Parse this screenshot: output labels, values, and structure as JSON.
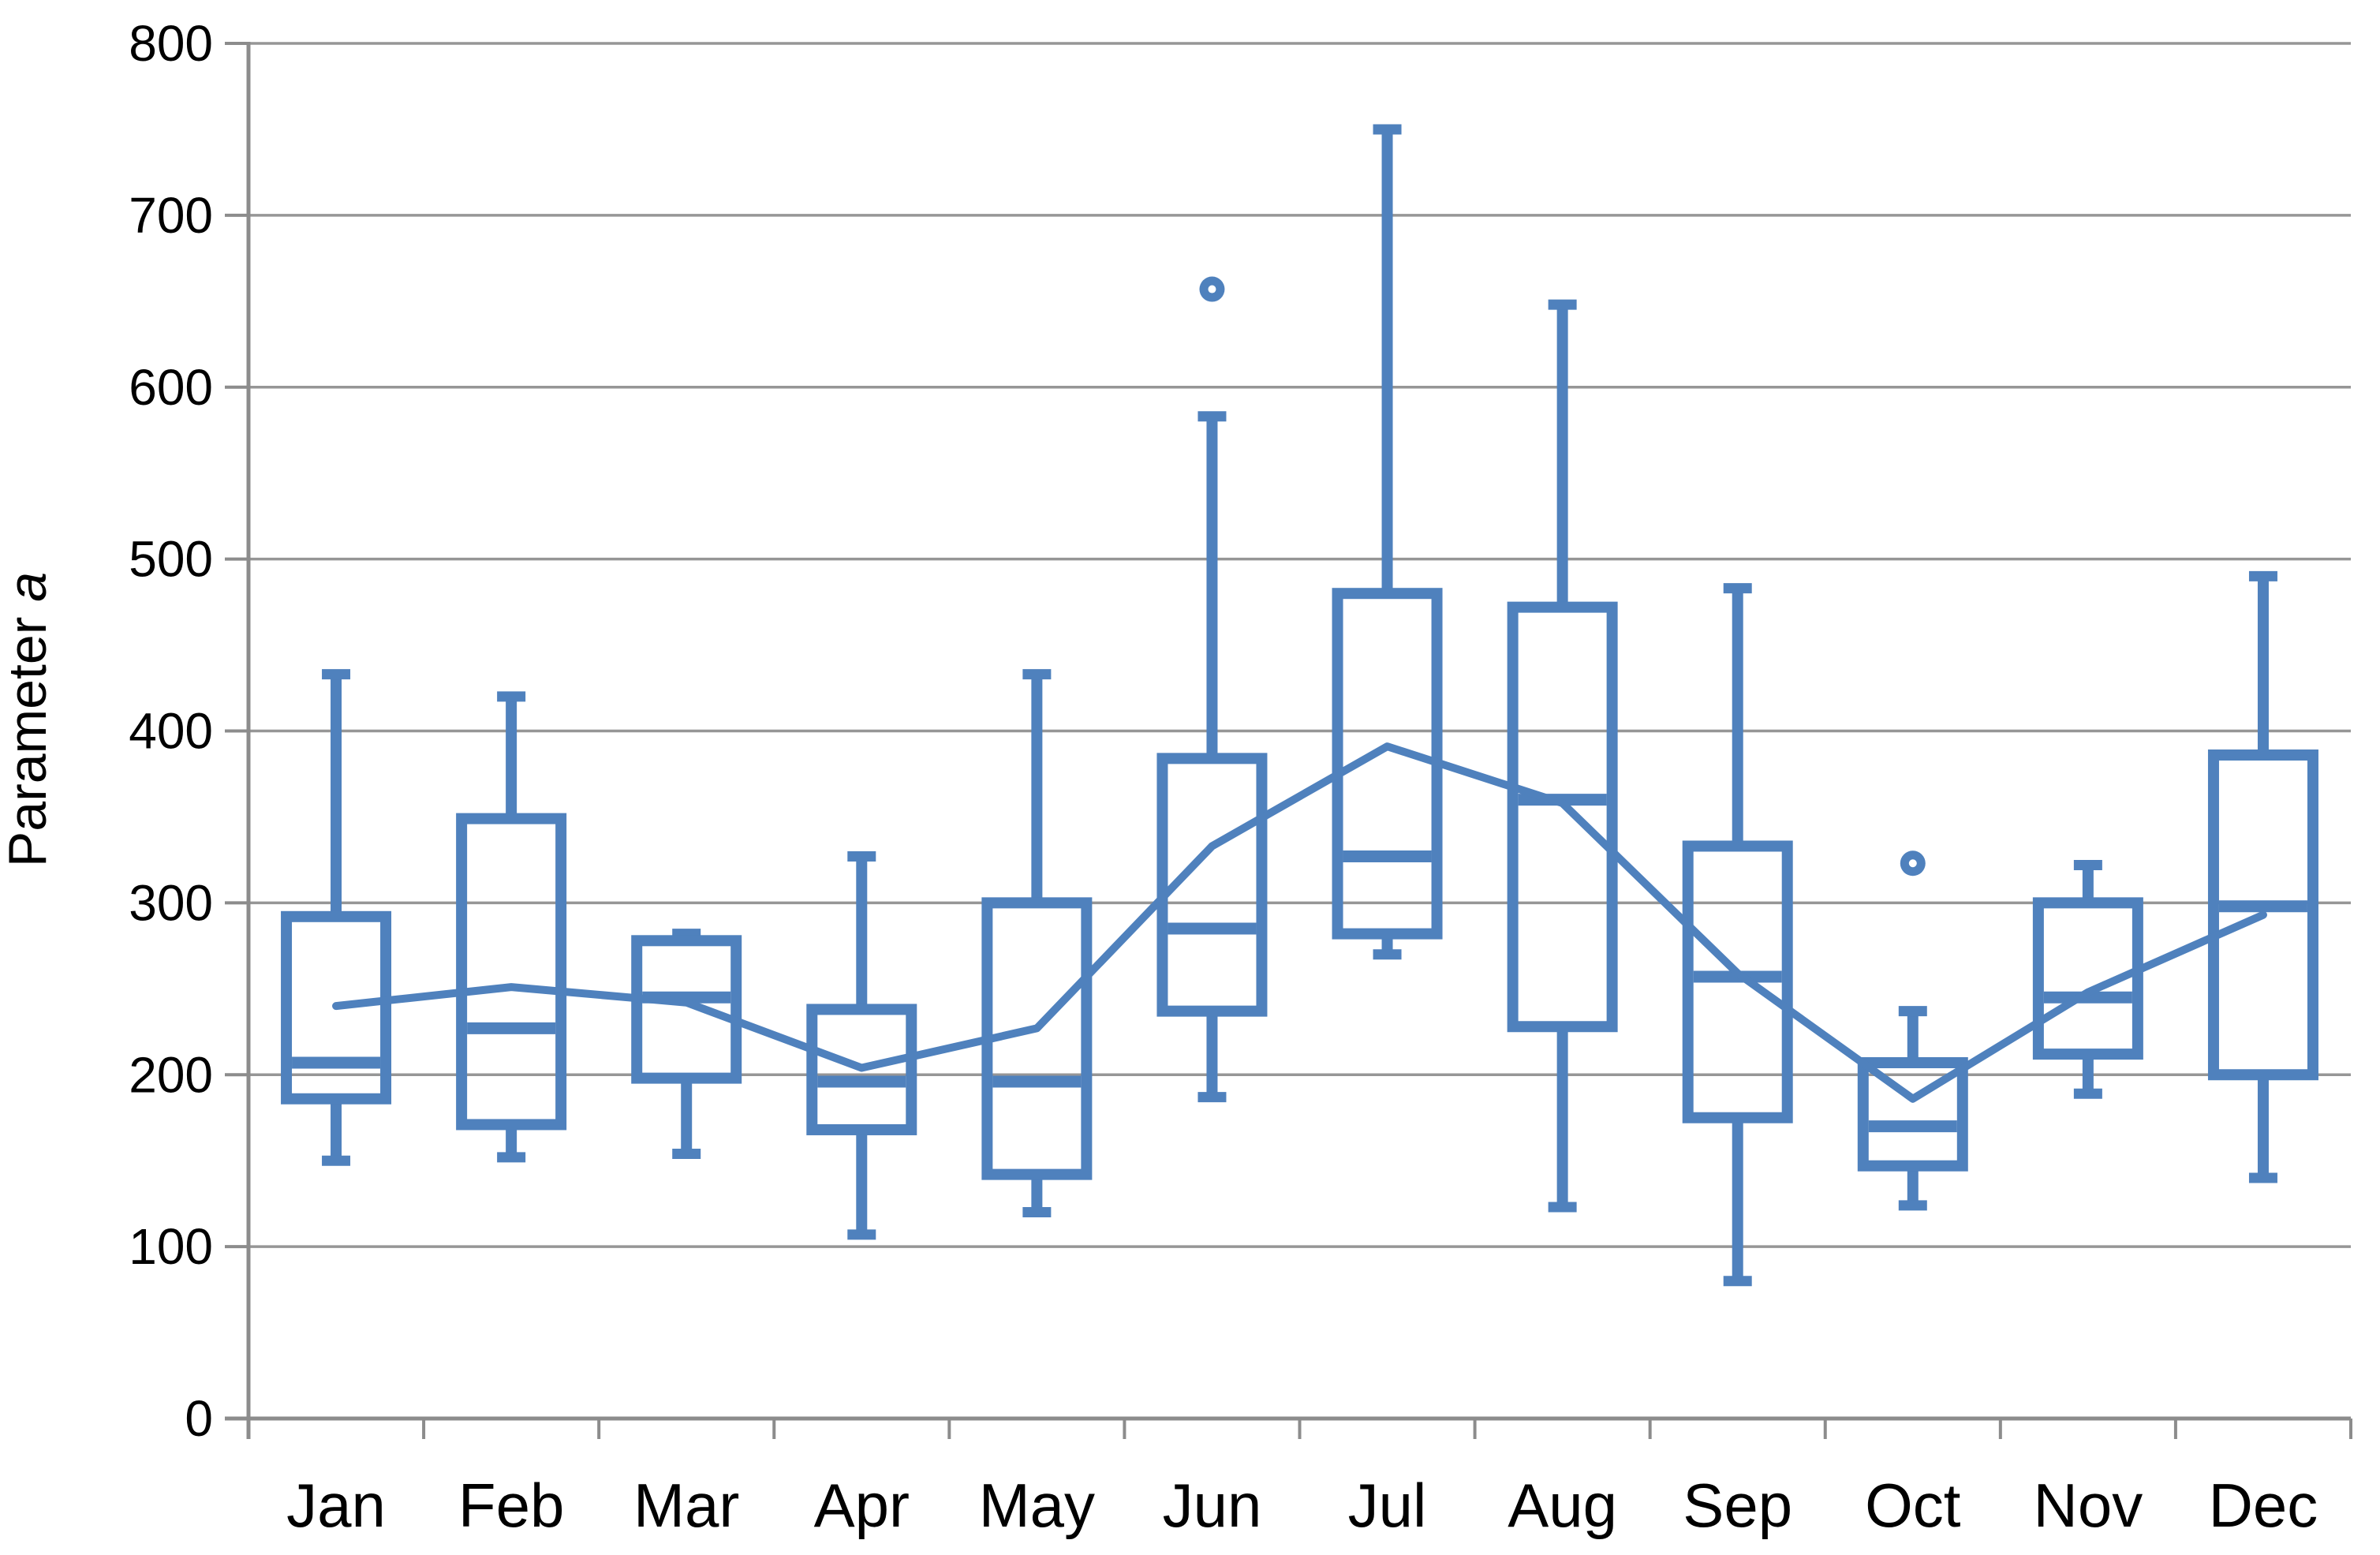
{
  "chart_data": {
    "type": "box",
    "title": "",
    "xlabel": "",
    "ylabel": "Parameter a",
    "ylabel_regular": "Parameter ",
    "ylabel_italic": "a",
    "ylim": [
      0,
      800
    ],
    "ytick_step": 100,
    "yticks": [
      0,
      100,
      200,
      300,
      400,
      500,
      600,
      700,
      800
    ],
    "grid": true,
    "legend": false,
    "mean_line": true,
    "categories": [
      "Jan",
      "Feb",
      "Mar",
      "Apr",
      "May",
      "Jun",
      "Jul",
      "Aug",
      "Sep",
      "Oct",
      "Nov",
      "Dec"
    ],
    "series": [
      {
        "month": "Jan",
        "min": 150,
        "q1": 186,
        "median": 207,
        "q3": 292,
        "max": 433,
        "mean": 240,
        "outliers": []
      },
      {
        "month": "Feb",
        "min": 152,
        "q1": 171,
        "median": 227,
        "q3": 349,
        "max": 420,
        "mean": 251,
        "outliers": []
      },
      {
        "month": "Mar",
        "min": 154,
        "q1": 198,
        "median": 245,
        "q3": 278,
        "max": 282,
        "mean": 242,
        "outliers": []
      },
      {
        "month": "Apr",
        "min": 107,
        "q1": 168,
        "median": 196,
        "q3": 238,
        "max": 327,
        "mean": 204,
        "outliers": []
      },
      {
        "month": "May",
        "min": 120,
        "q1": 142,
        "median": 196,
        "q3": 300,
        "max": 433,
        "mean": 227,
        "outliers": []
      },
      {
        "month": "Jun",
        "min": 187,
        "q1": 237,
        "median": 285,
        "q3": 384,
        "max": 583,
        "mean": 333,
        "outliers": [
          657
        ]
      },
      {
        "month": "Jul",
        "min": 270,
        "q1": 282,
        "median": 327,
        "q3": 480,
        "max": 750,
        "mean": 391,
        "outliers": []
      },
      {
        "month": "Aug",
        "min": 123,
        "q1": 228,
        "median": 360,
        "q3": 472,
        "max": 648,
        "mean": 358,
        "outliers": []
      },
      {
        "month": "Sep",
        "min": 80,
        "q1": 175,
        "median": 257,
        "q3": 333,
        "max": 483,
        "mean": 259,
        "outliers": []
      },
      {
        "month": "Oct",
        "min": 124,
        "q1": 147,
        "median": 170,
        "q3": 207,
        "max": 237,
        "mean": 186,
        "outliers": [
          323
        ]
      },
      {
        "month": "Nov",
        "min": 189,
        "q1": 212,
        "median": 245,
        "q3": 300,
        "max": 322,
        "mean": 248,
        "outliers": []
      },
      {
        "month": "Dec",
        "min": 140,
        "q1": 200,
        "median": 298,
        "q3": 386,
        "max": 490,
        "mean": 293,
        "outliers": []
      }
    ]
  },
  "colors": {
    "box": "#4F81BD",
    "mean_line": "#4F81BD",
    "outlier": "#4F81BD",
    "grid": "#969696",
    "axis": "#8C8C8C",
    "text": "#000000",
    "background": "#FFFFFF"
  }
}
